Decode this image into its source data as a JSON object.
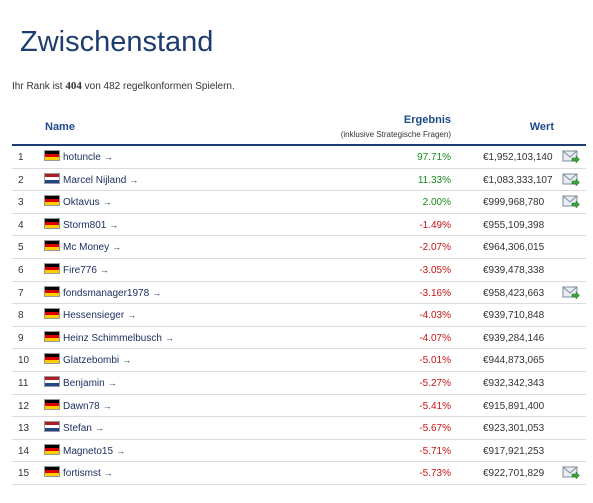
{
  "page": {
    "title": "Zwischenstand",
    "rank_prefix": "Ihr Rank ist",
    "rank_value": "404",
    "rank_suffix": "von 482 regelkonformen Spielern."
  },
  "table": {
    "col_name": "Name",
    "col_result": "Ergebnis",
    "col_result_sub": "(inklusive Strategische Fragen)",
    "col_value": "Wert",
    "rows": [
      {
        "rank": "1",
        "flag": "de",
        "name": "hotuncle",
        "result": "97.71%",
        "positive": true,
        "value": "€1,952,103,140",
        "mail": true
      },
      {
        "rank": "2",
        "flag": "nl",
        "name": "Marcel Nijland",
        "result": "11.33%",
        "positive": true,
        "value": "€1,083,333,107",
        "mail": true
      },
      {
        "rank": "3",
        "flag": "de",
        "name": "Oktavus",
        "result": "2.00%",
        "positive": true,
        "value": "€999,968,780",
        "mail": true
      },
      {
        "rank": "4",
        "flag": "de",
        "name": "Storm801",
        "result": "-1.49%",
        "positive": false,
        "value": "€955,109,398",
        "mail": false
      },
      {
        "rank": "5",
        "flag": "de",
        "name": "Mc Money",
        "result": "-2.07%",
        "positive": false,
        "value": "€964,306,015",
        "mail": false
      },
      {
        "rank": "6",
        "flag": "de",
        "name": "Fire776",
        "result": "-3.05%",
        "positive": false,
        "value": "€939,478,338",
        "mail": false
      },
      {
        "rank": "7",
        "flag": "de",
        "name": "fondsmanager1978",
        "result": "-3.16%",
        "positive": false,
        "value": "€958,423,663",
        "mail": true
      },
      {
        "rank": "8",
        "flag": "de",
        "name": "Hessensieger",
        "result": "-4.03%",
        "positive": false,
        "value": "€939,710,848",
        "mail": false
      },
      {
        "rank": "9",
        "flag": "de",
        "name": "Heinz Schimmelbusch",
        "result": "-4.07%",
        "positive": false,
        "value": "€939,284,146",
        "mail": false
      },
      {
        "rank": "10",
        "flag": "de",
        "name": "Glatzebombi",
        "result": "-5.01%",
        "positive": false,
        "value": "€944,873,065",
        "mail": false
      },
      {
        "rank": "11",
        "flag": "nl",
        "name": "Benjamin",
        "result": "-5.27%",
        "positive": false,
        "value": "€932,342,343",
        "mail": false
      },
      {
        "rank": "12",
        "flag": "de",
        "name": "Dawn78",
        "result": "-5.41%",
        "positive": false,
        "value": "€915,891,400",
        "mail": false
      },
      {
        "rank": "13",
        "flag": "nl",
        "name": "Stefan",
        "result": "-5.67%",
        "positive": false,
        "value": "€923,301,053",
        "mail": false
      },
      {
        "rank": "14",
        "flag": "de",
        "name": "Magneto15",
        "result": "-5.71%",
        "positive": false,
        "value": "€917,921,253",
        "mail": false
      },
      {
        "rank": "15",
        "flag": "de",
        "name": "fortismst",
        "result": "-5.73%",
        "positive": false,
        "value": "€922,701,829",
        "mail": true
      }
    ]
  },
  "colors": {
    "title": "#1d3d6e",
    "positive": "#1b8a1b",
    "negative": "#c81414",
    "link": "#1d3060"
  }
}
